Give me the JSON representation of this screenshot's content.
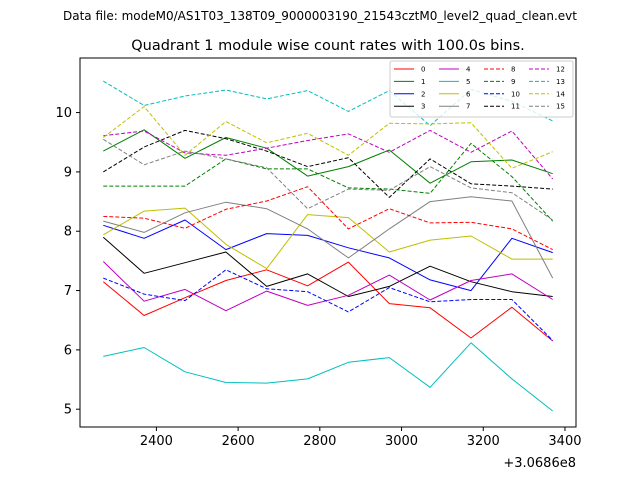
{
  "chart_data": {
    "type": "line",
    "suptitle": "Data file: modeM0/AS1T03_138T09_9000003190_21543cztM0_level2_quad_clean.evt",
    "title": "Quadrant 1 module wise count rates with 100.0s bins.",
    "xlabel": "",
    "ylabel": "",
    "x_offset_label": "+3.0686e8",
    "xlim": [
      2213,
      3427
    ],
    "ylim": [
      4.7,
      10.92
    ],
    "xticks": [
      2400,
      2600,
      2800,
      3000,
      3200,
      3400
    ],
    "xtick_labels": [
      "2400",
      "2600",
      "2800",
      "3000",
      "3200",
      "3400"
    ],
    "yticks": [
      5,
      6,
      7,
      8,
      9,
      10
    ],
    "ytick_labels": [
      "5",
      "6",
      "7",
      "8",
      "9",
      "10"
    ],
    "x": [
      2270,
      2370,
      2470,
      2570,
      2670,
      2770,
      2870,
      2970,
      3070,
      3170,
      3270,
      3370
    ],
    "legend_position": "top-right",
    "series": [
      {
        "name": "0",
        "color": "#ff0000",
        "dash": "solid",
        "values": [
          7.15,
          6.58,
          6.88,
          7.17,
          7.35,
          7.08,
          7.48,
          6.78,
          6.71,
          6.2,
          6.72,
          6.15
        ]
      },
      {
        "name": "1",
        "color": "#008000",
        "dash": "solid",
        "values": [
          9.35,
          9.71,
          9.23,
          9.58,
          9.4,
          8.93,
          9.09,
          9.37,
          8.81,
          9.17,
          9.2,
          8.97
        ]
      },
      {
        "name": "2",
        "color": "#0000ff",
        "dash": "solid",
        "values": [
          8.1,
          7.88,
          8.19,
          7.69,
          7.96,
          7.93,
          7.72,
          7.55,
          7.18,
          7.0,
          7.88,
          7.64
        ]
      },
      {
        "name": "3",
        "color": "#000000",
        "dash": "solid",
        "values": [
          7.9,
          7.29,
          7.47,
          7.65,
          7.07,
          7.28,
          6.9,
          7.07,
          7.41,
          7.15,
          6.98,
          6.9
        ]
      },
      {
        "name": "4",
        "color": "#bf00bf",
        "dash": "solid",
        "values": [
          7.49,
          6.82,
          7.02,
          6.66,
          6.99,
          6.75,
          6.92,
          7.26,
          6.84,
          7.17,
          7.28,
          6.85
        ]
      },
      {
        "name": "5",
        "color": "#00bfbf",
        "dash": "solid",
        "values": [
          5.89,
          6.04,
          5.63,
          5.45,
          5.44,
          5.51,
          5.79,
          5.87,
          5.37,
          6.12,
          5.51,
          4.97
        ]
      },
      {
        "name": "6",
        "color": "#bfbf00",
        "dash": "solid",
        "values": [
          7.94,
          8.34,
          8.39,
          7.78,
          7.37,
          8.28,
          8.23,
          7.65,
          7.85,
          7.92,
          7.53,
          7.53
        ]
      },
      {
        "name": "7",
        "color": "#808080",
        "dash": "solid",
        "values": [
          8.17,
          7.98,
          8.31,
          8.49,
          8.38,
          8.04,
          7.55,
          8.04,
          8.5,
          8.58,
          8.51,
          7.21
        ]
      },
      {
        "name": "8",
        "color": "#ff0000",
        "dash": "dashed",
        "values": [
          8.25,
          8.22,
          8.05,
          8.37,
          8.51,
          8.75,
          8.04,
          8.38,
          8.14,
          8.15,
          8.04,
          7.69
        ]
      },
      {
        "name": "9",
        "color": "#008000",
        "dash": "dashed",
        "values": [
          8.76,
          8.76,
          8.76,
          9.22,
          9.05,
          9.05,
          8.73,
          8.71,
          8.64,
          9.48,
          8.92,
          8.17
        ]
      },
      {
        "name": "10",
        "color": "#0000ff",
        "dash": "dashed",
        "values": [
          7.21,
          6.94,
          6.83,
          7.35,
          7.03,
          6.98,
          6.64,
          7.05,
          6.81,
          6.85,
          6.85,
          6.16
        ]
      },
      {
        "name": "11",
        "color": "#000000",
        "dash": "dashed",
        "values": [
          9.0,
          9.42,
          9.7,
          9.56,
          9.35,
          9.09,
          9.24,
          8.57,
          9.22,
          8.8,
          8.76,
          8.71
        ]
      },
      {
        "name": "12",
        "color": "#bf00bf",
        "dash": "dashed",
        "values": [
          9.61,
          9.69,
          9.32,
          9.28,
          9.4,
          9.53,
          9.64,
          9.33,
          9.7,
          9.33,
          9.69,
          8.88
        ]
      },
      {
        "name": "13",
        "color": "#00bfbf",
        "dash": "dashed",
        "values": [
          10.53,
          10.12,
          10.28,
          10.38,
          10.23,
          10.37,
          10.02,
          10.37,
          9.78,
          10.39,
          10.19,
          9.86
        ]
      },
      {
        "name": "14",
        "color": "#bfbf00",
        "dash": "dashed",
        "values": [
          9.58,
          10.1,
          9.28,
          9.85,
          9.49,
          9.65,
          9.28,
          9.82,
          9.81,
          9.83,
          9.06,
          9.34
        ]
      },
      {
        "name": "15",
        "color": "#808080",
        "dash": "dashed",
        "values": [
          9.55,
          9.12,
          9.35,
          9.22,
          9.07,
          8.38,
          8.71,
          8.69,
          9.09,
          8.73,
          8.65,
          8.19
        ]
      }
    ]
  }
}
